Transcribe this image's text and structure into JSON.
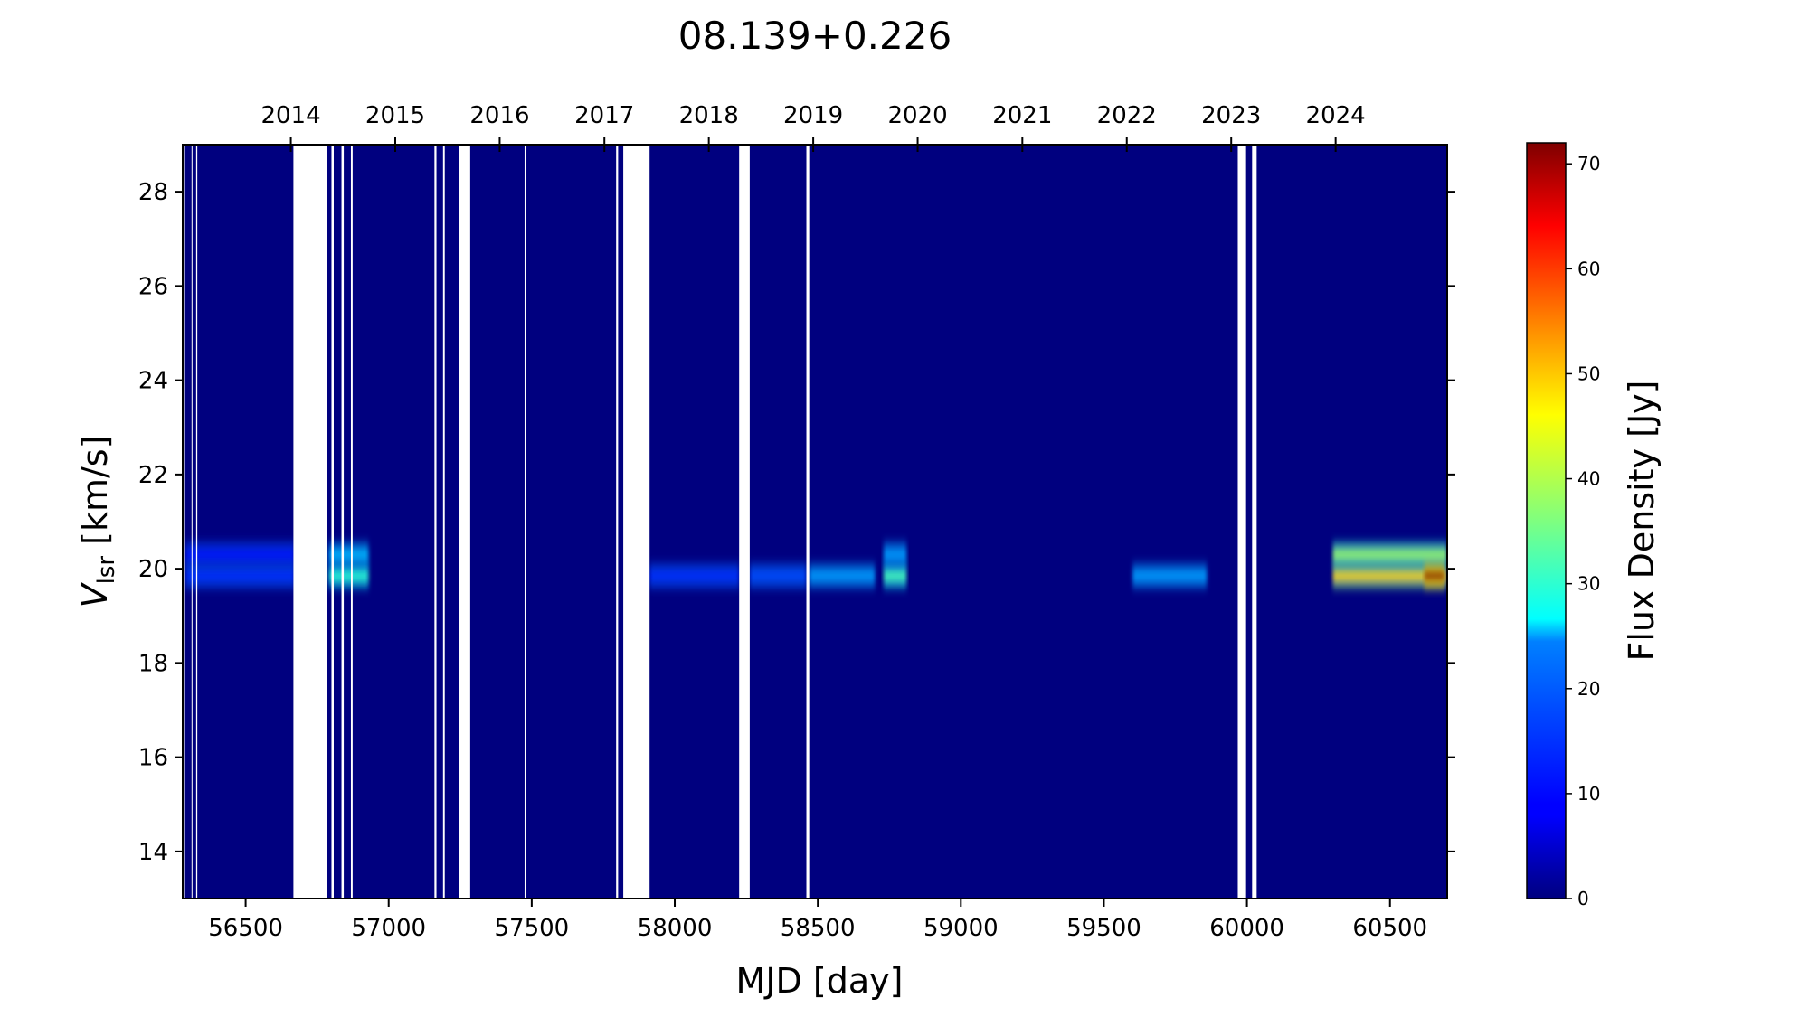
{
  "chart_data": {
    "type": "heatmap",
    "title": "08.139+0.226",
    "xlabel": "MJD [day]",
    "ylabel_main": "V",
    "ylabel_sub": "lsr",
    "ylabel_unit": " [km/s]",
    "colorbar_label": "Flux Density [Jy]",
    "colormap": "jet",
    "xlim": [
      56280,
      60700
    ],
    "ylim": [
      13,
      29
    ],
    "clim": [
      0,
      72
    ],
    "x_ticks": [
      56500,
      57000,
      57500,
      58000,
      58500,
      59000,
      59500,
      60000,
      60500
    ],
    "y_ticks": [
      14,
      16,
      18,
      20,
      22,
      24,
      26,
      28
    ],
    "colorbar_ticks": [
      0,
      10,
      20,
      30,
      40,
      50,
      60,
      70
    ],
    "top_axis_years": [
      {
        "label": "2014",
        "mjd": 56658
      },
      {
        "label": "2015",
        "mjd": 57023
      },
      {
        "label": "2016",
        "mjd": 57388
      },
      {
        "label": "2017",
        "mjd": 57754
      },
      {
        "label": "2018",
        "mjd": 58119
      },
      {
        "label": "2019",
        "mjd": 58484
      },
      {
        "label": "2020",
        "mjd": 58849
      },
      {
        "label": "2021",
        "mjd": 59215
      },
      {
        "label": "2022",
        "mjd": 59580
      },
      {
        "label": "2023",
        "mjd": 59945
      },
      {
        "label": "2024",
        "mjd": 60310
      }
    ],
    "observation_gaps_mjd": [
      [
        56280,
        56285
      ],
      [
        56311,
        56314
      ],
      [
        56327,
        56331
      ],
      [
        56667,
        56783
      ],
      [
        56800,
        56808
      ],
      [
        56835,
        56843
      ],
      [
        56868,
        56874
      ],
      [
        57160,
        57167
      ],
      [
        57190,
        57196
      ],
      [
        57245,
        57285
      ],
      [
        57475,
        57480
      ],
      [
        57795,
        57802
      ],
      [
        57820,
        57912
      ],
      [
        58225,
        58262
      ],
      [
        58460,
        58470
      ],
      [
        59968,
        59997
      ],
      [
        60018,
        60034
      ]
    ],
    "emission_features": [
      {
        "velocity_kms": 19.85,
        "mjd_start": 56290,
        "mjd_end": 56670,
        "peak_jy": 12
      },
      {
        "velocity_kms": 20.3,
        "mjd_start": 56290,
        "mjd_end": 56670,
        "peak_jy": 10
      },
      {
        "velocity_kms": 19.85,
        "mjd_start": 56790,
        "mjd_end": 56930,
        "peak_jy": 30
      },
      {
        "velocity_kms": 20.3,
        "mjd_start": 56790,
        "mjd_end": 56930,
        "peak_jy": 22
      },
      {
        "velocity_kms": 19.85,
        "mjd_start": 57912,
        "mjd_end": 58225,
        "peak_jy": 12
      },
      {
        "velocity_kms": 19.85,
        "mjd_start": 58262,
        "mjd_end": 58460,
        "peak_jy": 14
      },
      {
        "velocity_kms": 19.85,
        "mjd_start": 58470,
        "mjd_end": 58700,
        "peak_jy": 20
      },
      {
        "velocity_kms": 19.85,
        "mjd_start": 58730,
        "mjd_end": 58810,
        "peak_jy": 32
      },
      {
        "velocity_kms": 20.3,
        "mjd_start": 58730,
        "mjd_end": 58810,
        "peak_jy": 20
      },
      {
        "velocity_kms": 19.85,
        "mjd_start": 59600,
        "mjd_end": 59860,
        "peak_jy": 20
      },
      {
        "velocity_kms": 19.85,
        "mjd_start": 60300,
        "mjd_end": 60700,
        "peak_jy": 48
      },
      {
        "velocity_kms": 20.3,
        "mjd_start": 60300,
        "mjd_end": 60700,
        "peak_jy": 38
      },
      {
        "velocity_kms": 19.85,
        "mjd_start": 60620,
        "mjd_end": 60690,
        "peak_jy": 72
      }
    ]
  }
}
